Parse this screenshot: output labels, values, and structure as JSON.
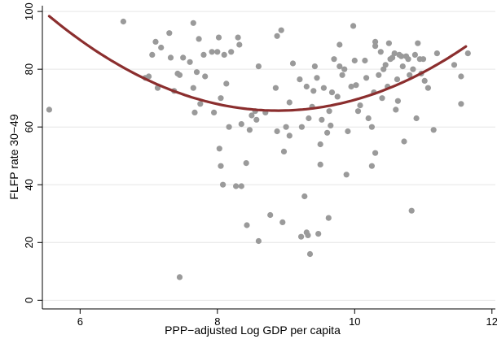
{
  "chart_data": {
    "type": "scatter",
    "title": "",
    "xlabel": "PPP−adjusted Log GDP per capita",
    "ylabel": "FLFP rate 30−49",
    "xlim": [
      5.45,
      12.05
    ],
    "ylim": [
      -3,
      102
    ],
    "xticks": [
      "6",
      "8",
      "10",
      "12"
    ],
    "yticks": [
      "0",
      "20",
      "40",
      "60",
      "80",
      "100"
    ],
    "grid": "horizontal",
    "colors": {
      "points": "#9a9a9a",
      "fit": "#8b2e2e",
      "grid": "#e6e6e6"
    },
    "series": [
      {
        "type": "scatter",
        "points": [
          [
            5.55,
            66
          ],
          [
            6.63,
            96.5
          ],
          [
            6.95,
            77
          ],
          [
            7.0,
            77.5
          ],
          [
            7.05,
            85
          ],
          [
            7.1,
            89.5
          ],
          [
            7.13,
            73.5
          ],
          [
            7.18,
            87.5
          ],
          [
            7.3,
            92.5
          ],
          [
            7.32,
            84
          ],
          [
            7.37,
            72.5
          ],
          [
            7.42,
            78.5
          ],
          [
            7.45,
            8
          ],
          [
            7.45,
            78
          ],
          [
            7.5,
            84
          ],
          [
            7.6,
            82.5
          ],
          [
            7.65,
            96
          ],
          [
            7.65,
            73.5
          ],
          [
            7.67,
            65
          ],
          [
            7.7,
            79
          ],
          [
            7.73,
            90.5
          ],
          [
            7.75,
            68
          ],
          [
            7.8,
            85
          ],
          [
            7.82,
            77.5
          ],
          [
            7.92,
            86
          ],
          [
            7.95,
            65
          ],
          [
            8.0,
            86
          ],
          [
            8.02,
            91
          ],
          [
            8.03,
            52.5
          ],
          [
            8.05,
            46.5
          ],
          [
            8.05,
            70
          ],
          [
            8.08,
            40
          ],
          [
            8.1,
            85
          ],
          [
            8.13,
            75
          ],
          [
            8.17,
            60
          ],
          [
            8.2,
            86
          ],
          [
            8.27,
            39.5
          ],
          [
            8.3,
            91
          ],
          [
            8.32,
            88.5
          ],
          [
            8.35,
            39.5
          ],
          [
            8.35,
            61
          ],
          [
            8.42,
            47.5
          ],
          [
            8.43,
            26
          ],
          [
            8.47,
            59
          ],
          [
            8.5,
            64
          ],
          [
            8.55,
            65.5
          ],
          [
            8.57,
            62.5
          ],
          [
            8.6,
            81
          ],
          [
            8.6,
            20.5
          ],
          [
            8.7,
            65
          ],
          [
            8.77,
            29.5
          ],
          [
            8.85,
            73.5
          ],
          [
            8.87,
            58.5
          ],
          [
            8.87,
            91.5
          ],
          [
            8.93,
            93.5
          ],
          [
            8.95,
            27
          ],
          [
            8.97,
            51.5
          ],
          [
            9.0,
            60
          ],
          [
            9.05,
            68.5
          ],
          [
            9.05,
            57
          ],
          [
            9.1,
            82
          ],
          [
            9.2,
            76.5
          ],
          [
            9.22,
            22
          ],
          [
            9.23,
            60
          ],
          [
            9.27,
            36
          ],
          [
            9.3,
            23.5
          ],
          [
            9.3,
            74
          ],
          [
            9.32,
            22.5
          ],
          [
            9.35,
            16
          ],
          [
            9.33,
            63
          ],
          [
            9.38,
            67
          ],
          [
            9.4,
            72.5
          ],
          [
            9.42,
            81
          ],
          [
            9.45,
            77
          ],
          [
            9.47,
            23
          ],
          [
            9.5,
            54
          ],
          [
            9.5,
            47
          ],
          [
            9.52,
            62.5
          ],
          [
            9.55,
            73.5
          ],
          [
            9.6,
            58
          ],
          [
            9.62,
            28.5
          ],
          [
            9.63,
            65.5
          ],
          [
            9.65,
            60.5
          ],
          [
            9.67,
            72
          ],
          [
            9.7,
            83.5
          ],
          [
            9.75,
            70.5
          ],
          [
            9.78,
            88.5
          ],
          [
            9.78,
            81
          ],
          [
            9.82,
            78
          ],
          [
            9.85,
            80
          ],
          [
            9.88,
            43.5
          ],
          [
            9.9,
            58.5
          ],
          [
            9.95,
            74
          ],
          [
            9.98,
            95
          ],
          [
            10.0,
            83
          ],
          [
            10.02,
            74.5
          ],
          [
            10.05,
            65.5
          ],
          [
            10.08,
            67.5
          ],
          [
            10.15,
            83
          ],
          [
            10.17,
            77
          ],
          [
            10.2,
            63
          ],
          [
            10.25,
            46.5
          ],
          [
            10.25,
            60
          ],
          [
            10.28,
            72
          ],
          [
            10.3,
            51
          ],
          [
            10.3,
            88
          ],
          [
            10.3,
            89.5
          ],
          [
            10.35,
            78
          ],
          [
            10.38,
            86
          ],
          [
            10.4,
            70
          ],
          [
            10.42,
            80
          ],
          [
            10.45,
            81.5
          ],
          [
            10.48,
            74
          ],
          [
            10.5,
            89
          ],
          [
            10.52,
            83.5
          ],
          [
            10.55,
            84
          ],
          [
            10.58,
            85.5
          ],
          [
            10.6,
            66
          ],
          [
            10.62,
            76.5
          ],
          [
            10.63,
            69
          ],
          [
            10.65,
            85
          ],
          [
            10.68,
            84.5
          ],
          [
            10.7,
            81
          ],
          [
            10.72,
            55
          ],
          [
            10.75,
            84.5
          ],
          [
            10.78,
            83.5
          ],
          [
            10.8,
            78
          ],
          [
            10.83,
            31
          ],
          [
            10.85,
            80
          ],
          [
            10.88,
            85
          ],
          [
            10.9,
            63
          ],
          [
            10.92,
            89
          ],
          [
            10.95,
            83.5
          ],
          [
            10.97,
            78.5
          ],
          [
            11.0,
            83.5
          ],
          [
            11.02,
            76
          ],
          [
            11.07,
            73.5
          ],
          [
            11.15,
            59
          ],
          [
            11.2,
            85.5
          ],
          [
            11.45,
            81.5
          ],
          [
            11.55,
            68
          ],
          [
            11.55,
            77.5
          ],
          [
            11.65,
            85.5
          ]
        ]
      },
      {
        "type": "quadratic-fit",
        "x_range": [
          5.55,
          11.62
        ],
        "points": [
          [
            5.55,
            98
          ],
          [
            7.0,
            76.5
          ],
          [
            8.0,
            68.5
          ],
          [
            8.8,
            65.7
          ],
          [
            9.5,
            66.5
          ],
          [
            10.5,
            72.5
          ],
          [
            11.62,
            88.5
          ]
        ]
      }
    ]
  }
}
